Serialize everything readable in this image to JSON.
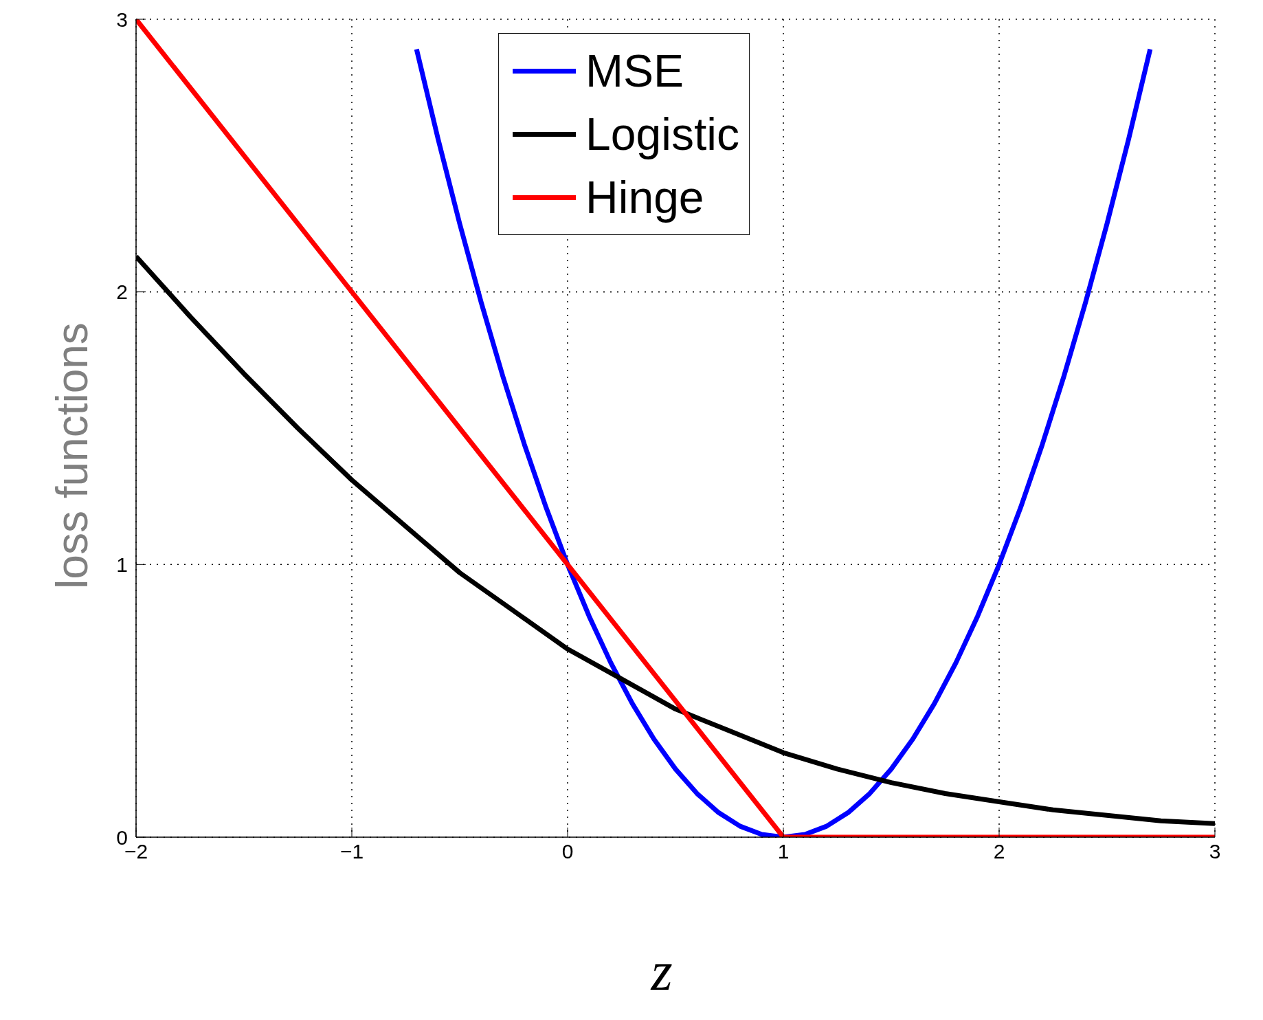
{
  "chart_data": {
    "type": "line",
    "xlabel": "z",
    "ylabel": "loss functions",
    "xlim": [
      -2,
      3
    ],
    "ylim": [
      0,
      3
    ],
    "xticks": [
      -2,
      -1,
      0,
      1,
      2,
      3
    ],
    "yticks": [
      0,
      1,
      2,
      3
    ],
    "grid": true,
    "legend": "top",
    "series": [
      {
        "name": "MSE",
        "color": "#0000ff",
        "x": [
          -0.7,
          -0.6,
          -0.5,
          -0.4,
          -0.3,
          -0.2,
          -0.1,
          0,
          0.1,
          0.2,
          0.3,
          0.4,
          0.5,
          0.6,
          0.7,
          0.8,
          0.9,
          1,
          1.1,
          1.2,
          1.3,
          1.4,
          1.5,
          1.6,
          1.7,
          1.8,
          1.9,
          2,
          2.1,
          2.2,
          2.3,
          2.4,
          2.5,
          2.6,
          2.7
        ],
        "values": [
          2.89,
          2.56,
          2.25,
          1.96,
          1.69,
          1.44,
          1.21,
          1,
          0.81,
          0.64,
          0.49,
          0.36,
          0.25,
          0.16,
          0.09,
          0.04,
          0.01,
          0,
          0.01,
          0.04,
          0.09,
          0.16,
          0.25,
          0.36,
          0.49,
          0.64,
          0.81,
          1,
          1.21,
          1.44,
          1.69,
          1.96,
          2.25,
          2.56,
          2.89
        ]
      },
      {
        "name": "Logistic",
        "color": "#000000",
        "x": [
          -2,
          -1.75,
          -1.5,
          -1.25,
          -1,
          -0.75,
          -0.5,
          -0.25,
          0,
          0.25,
          0.5,
          0.75,
          1,
          1.25,
          1.5,
          1.75,
          2,
          2.25,
          2.5,
          2.75,
          3
        ],
        "values": [
          2.13,
          1.91,
          1.7,
          1.5,
          1.31,
          1.14,
          0.97,
          0.83,
          0.69,
          0.58,
          0.47,
          0.39,
          0.31,
          0.25,
          0.2,
          0.16,
          0.13,
          0.1,
          0.08,
          0.06,
          0.05
        ]
      },
      {
        "name": "Hinge",
        "color": "#ff0000",
        "x": [
          -2,
          1,
          3
        ],
        "values": [
          3,
          0,
          0
        ]
      }
    ]
  }
}
